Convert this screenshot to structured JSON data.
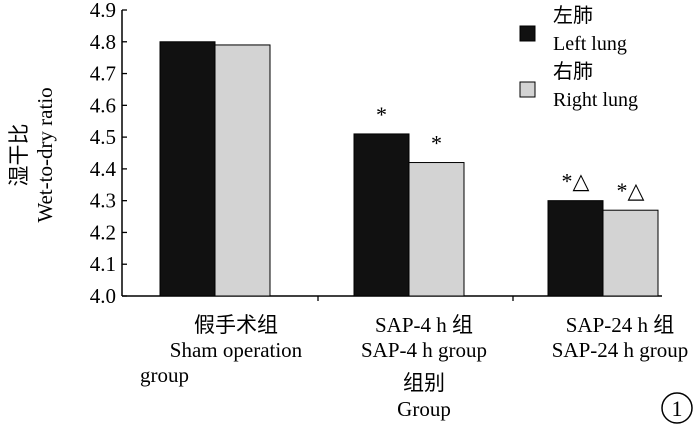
{
  "chart_data": {
    "type": "bar",
    "categories": [
      [
        "假手术组",
        "Sham operation",
        "group"
      ],
      [
        "SAP-4 h 组",
        "SAP-4 h group"
      ],
      [
        "SAP-24 h 组",
        "SAP-24 h group"
      ]
    ],
    "series": [
      {
        "name_zh": "左肺",
        "name_en": "Left lung",
        "color": "#111111",
        "values": [
          4.8,
          4.51,
          4.3
        ]
      },
      {
        "name_zh": "右肺",
        "name_en": "Right lung",
        "color": "#d3d3d3",
        "values": [
          4.79,
          4.42,
          4.27
        ]
      }
    ],
    "annotations": [
      [
        "",
        ""
      ],
      [
        "*",
        "*"
      ],
      [
        "*△",
        "*△"
      ]
    ],
    "ylabel_zh": "湿干比",
    "ylabel_en": "Wet-to-dry ratio",
    "xlabel_zh": "组别",
    "xlabel_en": "Group",
    "ylim": [
      4.0,
      4.9
    ],
    "yticks": [
      "4.0",
      "4.1",
      "4.2",
      "4.3",
      "4.4",
      "4.5",
      "4.6",
      "4.7",
      "4.8",
      "4.9"
    ],
    "legend_position": "top-right",
    "figure_number": "1",
    "grid": false
  }
}
